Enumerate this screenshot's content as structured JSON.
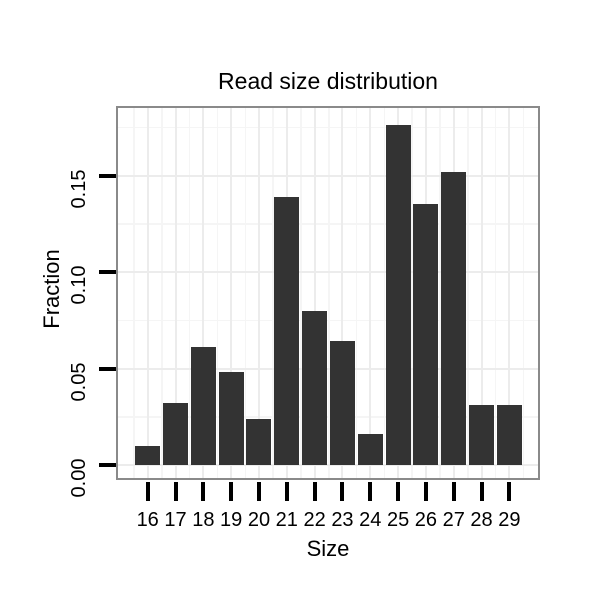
{
  "chart_data": {
    "type": "bar",
    "title": "Read size distribution",
    "xlabel": "Size",
    "ylabel": "Fraction",
    "categories": [
      "16",
      "17",
      "18",
      "19",
      "20",
      "21",
      "22",
      "23",
      "24",
      "25",
      "26",
      "27",
      "28",
      "29"
    ],
    "values": [
      0.01,
      0.032,
      0.061,
      0.048,
      0.024,
      0.139,
      0.08,
      0.064,
      0.016,
      0.176,
      0.135,
      0.152,
      0.031,
      0.031
    ],
    "y_tick_labels": [
      "0.00",
      "0.05",
      "0.10",
      "0.15"
    ],
    "y_tick_values": [
      0,
      0.05,
      0.1,
      0.15
    ],
    "y_minor_values": [
      0.025,
      0.075,
      0.125,
      0.175
    ],
    "ylim": [
      0,
      0.1855
    ],
    "grid": "major+minor, very light gray on white panel",
    "legend": "none",
    "colors": {
      "bar": "#333333",
      "panel_border": "#8a8a8a",
      "grid_major": "#ececec",
      "grid_minor": "#f5f5f5",
      "tick": "#000000",
      "text": "#000000",
      "background": "#ffffff"
    }
  }
}
